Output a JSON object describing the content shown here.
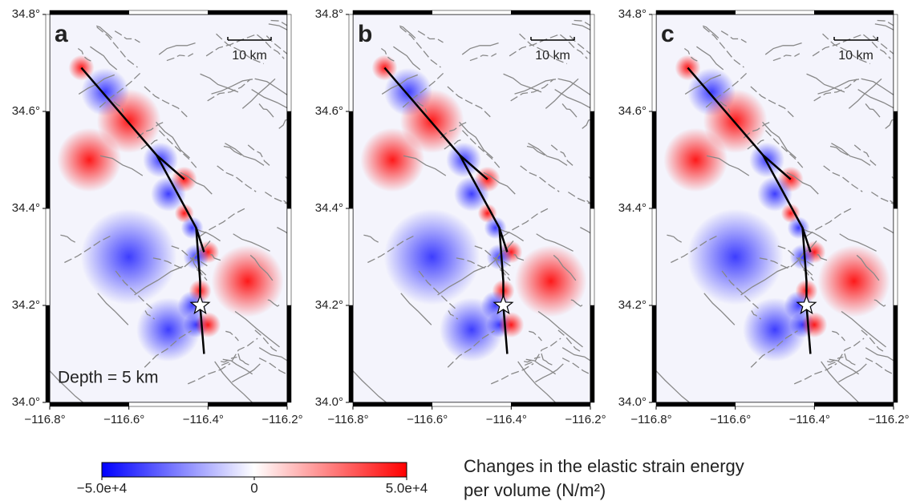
{
  "panels": [
    {
      "label": "a",
      "scale_label": "10 km",
      "annotation": "Depth = 5 km"
    },
    {
      "label": "b",
      "scale_label": "10 km"
    },
    {
      "label": "c",
      "scale_label": "10 km"
    }
  ],
  "map": {
    "xlim": [
      -116.8,
      -116.2
    ],
    "ylim": [
      34.0,
      34.8
    ],
    "xticks": [
      {
        "value": -116.8,
        "label": "−116.8°"
      },
      {
        "value": -116.6,
        "label": "−116.6°"
      },
      {
        "value": -116.4,
        "label": "−116.4°"
      },
      {
        "value": -116.2,
        "label": "−116.2°"
      }
    ],
    "yticks": [
      {
        "value": 34.0,
        "label": "34.0°"
      },
      {
        "value": 34.2,
        "label": "34.2°"
      },
      {
        "value": 34.4,
        "label": "34.4°"
      },
      {
        "value": 34.6,
        "label": "34.6°"
      },
      {
        "value": 34.8,
        "label": "34.8°"
      }
    ]
  },
  "colorbar": {
    "lim": [
      -50000,
      50000
    ],
    "ticks": [
      {
        "value": -50000,
        "label": "−5.0e+4"
      },
      0,
      {
        "value": 50000,
        "label": "5.0e+4"
      }
    ],
    "title": [
      "Changes in the elastic strain energy",
      "per volume (N/m²)"
    ]
  }
}
